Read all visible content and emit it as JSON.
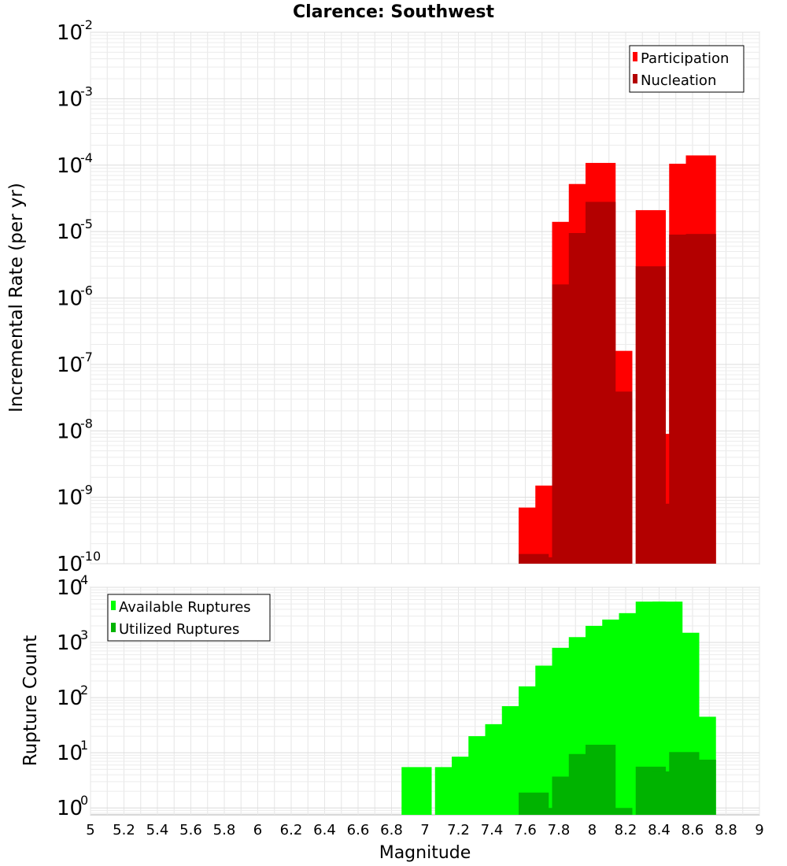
{
  "chart_data": [
    {
      "type": "bar",
      "title": "Clarence: Southwest",
      "ylabel": "Incremental Rate (per yr)",
      "yscale": "log",
      "ylim": [
        1e-10,
        0.01
      ],
      "xlim": [
        5,
        9
      ],
      "grid": true,
      "legend_position": "top-right",
      "y_ticks": [
        {
          "base": "10",
          "exp": "-10"
        },
        {
          "base": "10",
          "exp": "-9"
        },
        {
          "base": "10",
          "exp": "-8"
        },
        {
          "base": "10",
          "exp": "-7"
        },
        {
          "base": "10",
          "exp": "-6"
        },
        {
          "base": "10",
          "exp": "-5"
        },
        {
          "base": "10",
          "exp": "-4"
        },
        {
          "base": "10",
          "exp": "-3"
        },
        {
          "base": "10",
          "exp": "-2"
        }
      ],
      "x": [
        7.65,
        7.75,
        7.85,
        7.95,
        8.05,
        8.15,
        8.35,
        8.45,
        8.55,
        8.65
      ],
      "series": [
        {
          "name": "Participation",
          "color": "#ff0000",
          "values": [
            7e-10,
            1.5e-09,
            1.4e-05,
            5.2e-05,
            0.000108,
            1.6e-07,
            2.1e-05,
            9e-09,
            0.000105,
            0.00014
          ]
        },
        {
          "name": "Nucleation",
          "color": "#b30000",
          "values": [
            1.4e-10,
            1.25e-10,
            1.6e-06,
            9.5e-06,
            2.8e-05,
            3.9e-08,
            3e-06,
            8e-10,
            9e-06,
            9.2e-06
          ]
        }
      ]
    },
    {
      "type": "bar",
      "ylabel": "Rupture Count",
      "xlabel": "Magnitude",
      "yscale": "log",
      "ylim": [
        0.75,
        10000
      ],
      "xlim": [
        5,
        9
      ],
      "grid": true,
      "legend_position": "top-left",
      "y_ticks": [
        {
          "base": "10",
          "exp": "0"
        },
        {
          "base": "10",
          "exp": "1"
        },
        {
          "base": "10",
          "exp": "2"
        },
        {
          "base": "10",
          "exp": "3"
        },
        {
          "base": "10",
          "exp": "4"
        }
      ],
      "x_ticks": [
        "5",
        "5.2",
        "5.4",
        "5.6",
        "5.8",
        "6",
        "6.2",
        "6.4",
        "6.6",
        "6.8",
        "7",
        "7.2",
        "7.4",
        "7.6",
        "7.8",
        "8",
        "8.2",
        "8.4",
        "8.6",
        "8.8",
        "9"
      ],
      "x": [
        6.95,
        7.15,
        7.25,
        7.35,
        7.45,
        7.55,
        7.65,
        7.75,
        7.85,
        7.95,
        8.05,
        8.15,
        8.25,
        8.35,
        8.45,
        8.55,
        8.65
      ],
      "series": [
        {
          "name": "Available Ruptures",
          "color": "#00ff00",
          "values": [
            5.5,
            5.5,
            8.5,
            20,
            33,
            70,
            160,
            380,
            800,
            1250,
            2000,
            2600,
            3400,
            5500,
            5500,
            1500,
            45
          ]
        },
        {
          "name": "Utilized Ruptures",
          "color": "#00b300",
          "values": [
            null,
            null,
            null,
            null,
            null,
            null,
            1.9,
            1,
            3.7,
            9.5,
            14,
            1,
            null,
            5.6,
            4.6,
            10.3,
            7.5
          ]
        }
      ]
    }
  ]
}
